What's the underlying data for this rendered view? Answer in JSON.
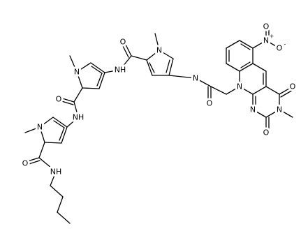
{
  "atoms": [
    {
      "label": "O"
    },
    {
      "label": "N",
      "charge": "+"
    },
    {
      "label": "O",
      "charge": "-"
    },
    {
      "label": "N"
    },
    {
      "label": "O"
    },
    {
      "label": "N"
    },
    {
      "label": "O"
    },
    {
      "label": "N"
    },
    {
      "label": "O"
    },
    {
      "label": "N"
    },
    {
      "label": "N"
    },
    {
      "label": "O"
    },
    {
      "label": "NH"
    },
    {
      "label": "N"
    },
    {
      "label": "O"
    },
    {
      "label": "NH"
    },
    {
      "label": "N"
    },
    {
      "label": "O"
    },
    {
      "label": "NH"
    }
  ]
}
